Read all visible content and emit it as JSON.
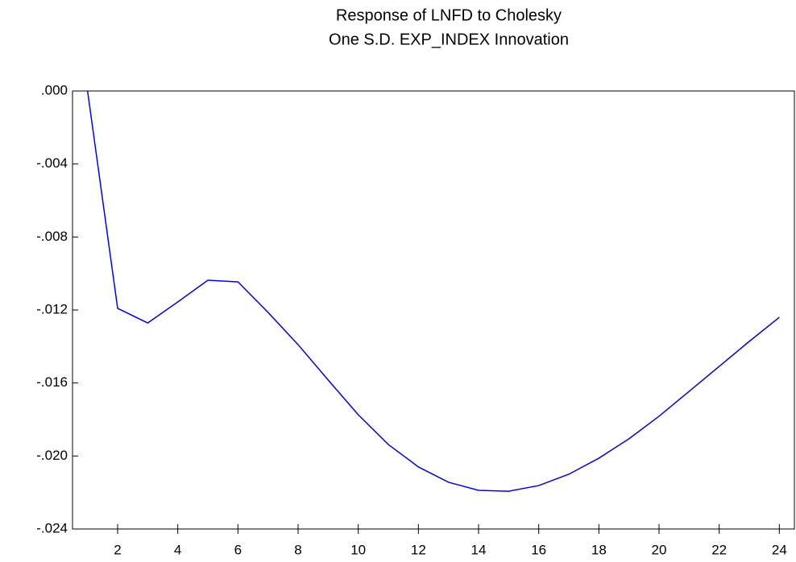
{
  "chart_data": {
    "type": "line",
    "title_lines": [
      "Response of LNFD to Cholesky",
      "One S.D. EXP_INDEX Innovation"
    ],
    "x": [
      1,
      2,
      3,
      4,
      5,
      6,
      7,
      8,
      9,
      10,
      11,
      12,
      13,
      14,
      15,
      16,
      17,
      18,
      19,
      20,
      21,
      22,
      23,
      24
    ],
    "series": [
      {
        "color": "#0000ff",
        "values": [
          0.0,
          -0.01191,
          -0.01271,
          -0.01156,
          -0.01037,
          -0.01046,
          -0.01213,
          -0.0139,
          -0.01584,
          -0.01774,
          -0.01937,
          -0.0206,
          -0.02144,
          -0.02188,
          -0.02193,
          -0.02162,
          -0.021,
          -0.02012,
          -0.01906,
          -0.01782,
          -0.01646,
          -0.01509,
          -0.01372,
          -0.0124
        ]
      }
    ],
    "xlim": [
      0.5,
      24.5
    ],
    "xticks": [
      2,
      4,
      6,
      8,
      10,
      12,
      14,
      16,
      18,
      20,
      22,
      24
    ],
    "ylim": [
      -0.024,
      0.0
    ],
    "yticks": [
      {
        "value": 0.0,
        "label": ".000"
      },
      {
        "value": -0.004,
        "label": "-.004"
      },
      {
        "value": -0.008,
        "label": "-.008"
      },
      {
        "value": -0.012,
        "label": "-.012"
      },
      {
        "value": -0.016,
        "label": "-.016"
      },
      {
        "value": -0.02,
        "label": "-.020"
      },
      {
        "value": -0.024,
        "label": "-.024"
      }
    ],
    "grid": false
  }
}
